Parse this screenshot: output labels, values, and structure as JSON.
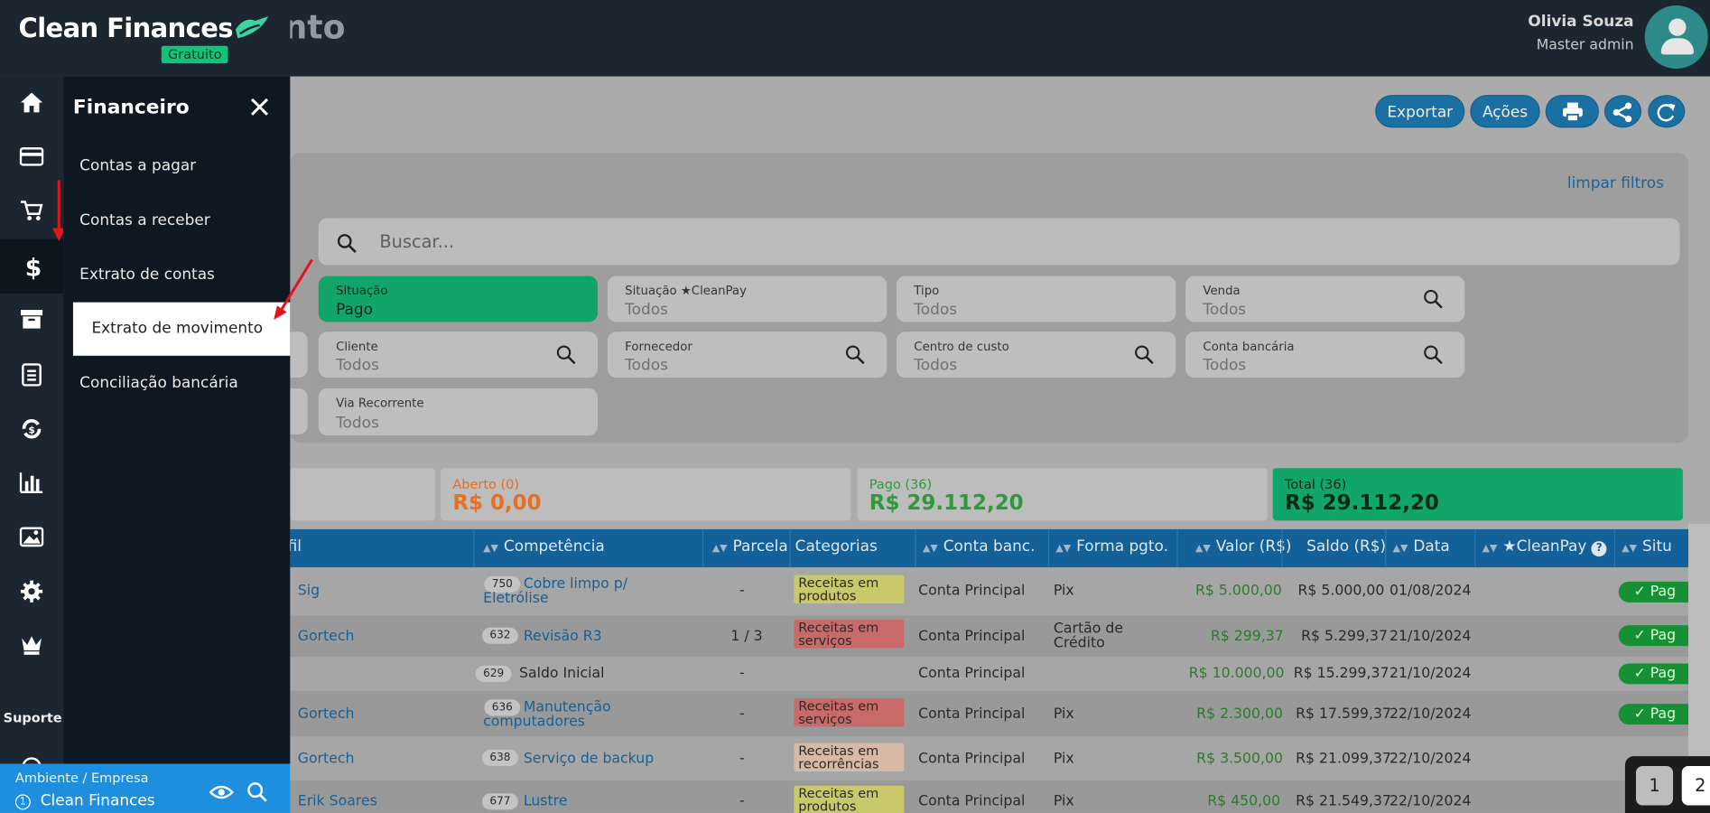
{
  "app": {
    "brand": "Clean Finances",
    "plan_badge": "Gratuito",
    "page_title": "Extrato de movimento",
    "page_title_visible": "ento"
  },
  "user": {
    "name": "Olivia Souza",
    "role": "Master admin"
  },
  "toolbar": {
    "export_label": "Exportar",
    "actions_label": "Ações",
    "print_icon": "printer-icon",
    "share_icon": "share-icon",
    "refresh_icon": "refresh-icon"
  },
  "filters": {
    "clear_label": "limpar filtros",
    "search_placeholder": "Buscar...",
    "fields": [
      {
        "label": "Situação",
        "value": "Pago"
      },
      {
        "label": "Situação ★CleanPay",
        "value": "Todos"
      },
      {
        "label": "Tipo",
        "value": "Todos"
      },
      {
        "label": "Venda",
        "value": "Todos"
      },
      {
        "label": "Cliente",
        "value": "Todos"
      },
      {
        "label": "Fornecedor",
        "value": "Todos"
      },
      {
        "label": "Centro de custo",
        "value": "Todos"
      },
      {
        "label": "Conta bancária",
        "value": "Todos"
      },
      {
        "label": "Via Recorrente",
        "value": "Todos"
      }
    ]
  },
  "summary": [
    {
      "label": "Aberto (0)",
      "value": "R$ 0,00",
      "color": "#e8701f"
    },
    {
      "label": "Pago (36)",
      "value": "R$ 29.112,20",
      "color": "#2e9a3a"
    },
    {
      "label": "Total (36)",
      "value": "R$ 29.112,20",
      "color": "#0a2a18"
    }
  ],
  "table": {
    "columns": [
      "rfil",
      "Competência",
      "Parcela",
      "Categorias",
      "Conta banc.",
      "Forma pgto.",
      "Valor (R$)",
      "Saldo (R$)",
      "Data",
      "★CleanPay",
      "Situ"
    ],
    "rows": [
      {
        "perfil": "Sig",
        "num": "750",
        "desc": "Cobre limpo p/ Eletrólise",
        "parcela": "-",
        "cat": "Receitas em produtos",
        "conta": "Conta Principal",
        "forma": "Pix",
        "valor": "R$ 5.000,00",
        "saldo": "R$ 5.000,00",
        "data": "01/08/2024",
        "situ": "Pag"
      },
      {
        "perfil": "Gortech",
        "num": "632",
        "desc": "Revisão R3",
        "parcela": "1 / 3",
        "cat": "Receitas em serviços",
        "conta": "Conta Principal",
        "forma": "Cartão de Crédito",
        "valor": "R$ 299,37",
        "saldo": "R$ 5.299,37",
        "data": "21/10/2024",
        "situ": "Pag"
      },
      {
        "perfil": "",
        "num": "629",
        "desc": "Saldo Inicial",
        "parcela": "-",
        "cat": "",
        "conta": "Conta Principal",
        "forma": "",
        "valor": "R$ 10.000,00",
        "saldo": "R$ 15.299,37",
        "data": "21/10/2024",
        "situ": "Pag"
      },
      {
        "perfil": "Gortech",
        "num": "636",
        "desc": "Manutenção computadores",
        "parcela": "-",
        "cat": "Receitas em serviços",
        "conta": "Conta Principal",
        "forma": "Pix",
        "valor": "R$ 2.300,00",
        "saldo": "R$ 17.599,37",
        "data": "22/10/2024",
        "situ": "Pag"
      },
      {
        "perfil": "Gortech",
        "num": "638",
        "desc": "Serviço de backup",
        "parcela": "-",
        "cat": "Receitas em recorrências",
        "conta": "Conta Principal",
        "forma": "Pix",
        "valor": "R$ 3.500,00",
        "saldo": "R$ 21.099,37",
        "data": "22/10/2024",
        "situ": "P"
      },
      {
        "perfil": "Erik Soares",
        "num": "677",
        "desc": "Lustre",
        "parcela": "-",
        "cat": "Receitas em produtos",
        "conta": "Conta Principal",
        "forma": "Pix",
        "valor": "R$ 450,00",
        "saldo": "R$ 21.549,37",
        "data": "22/10/2024",
        "situ": ""
      }
    ]
  },
  "pager": {
    "page1": "1",
    "page2": "2"
  },
  "menu": {
    "title": "Financeiro",
    "items": [
      "Contas a pagar",
      "Contas a receber",
      "Extrato de contas",
      "Extrato de movimento",
      "Conciliação bancária"
    ],
    "support_label": "Suporte"
  },
  "environment": {
    "label": "Ambiente / Empresa",
    "company": "Clean Finances",
    "index": "1"
  }
}
